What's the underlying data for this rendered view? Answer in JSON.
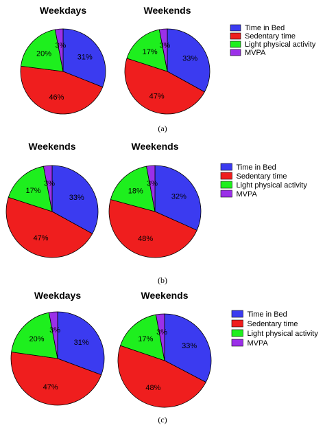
{
  "legend_items": [
    {
      "label": "Time in Bed",
      "color": "#3b3bf0"
    },
    {
      "label": "Sedentary time",
      "color": "#ef1e1e"
    },
    {
      "label": "Light physical activity",
      "color": "#1eef1e"
    },
    {
      "label": "MVPA",
      "color": "#9b30e8"
    }
  ],
  "chart_data": [
    {
      "type": "pie",
      "panel": "(a)",
      "caption": "(a)",
      "charts": [
        {
          "title": "Weekdays",
          "categories": [
            "Time in Bed",
            "Sedentary time",
            "Light physical activity",
            "MVPA"
          ],
          "values": [
            31,
            46,
            20,
            3
          ],
          "labels": [
            "31%",
            "46%",
            "20%",
            "3%"
          ]
        },
        {
          "title": "Weekends",
          "categories": [
            "Time in Bed",
            "Sedentary time",
            "Light physical activity",
            "MVPA"
          ],
          "values": [
            33,
            47,
            17,
            3
          ],
          "labels": [
            "33%",
            "47%",
            "17%",
            "3%"
          ]
        }
      ],
      "legend": [
        "Time in Bed",
        "Sedentary time",
        "Light physical activity",
        "MVPA"
      ]
    },
    {
      "type": "pie",
      "panel": "(b)",
      "caption": "(b)",
      "charts": [
        {
          "title": "Weekends",
          "categories": [
            "Time in Bed",
            "Sedentary time",
            "Light physical activity",
            "MVPA"
          ],
          "values": [
            33,
            47,
            17,
            3
          ],
          "labels": [
            "33%",
            "47%",
            "17%",
            "3%"
          ]
        },
        {
          "title": "Weekends",
          "categories": [
            "Time in Bed",
            "Sedentary time",
            "Light physical activity",
            "MVPA"
          ],
          "values": [
            32,
            48,
            18,
            3
          ],
          "labels": [
            "32%",
            "48%",
            "18%",
            "3%"
          ]
        }
      ],
      "legend": [
        "Time in Bed",
        "Sedentary time",
        "Light physical activity",
        "MVPA"
      ]
    },
    {
      "type": "pie",
      "panel": "(c)",
      "caption": "(c)",
      "charts": [
        {
          "title": "Weekdays",
          "categories": [
            "Time in Bed",
            "Sedentary time",
            "Light physical activity",
            "MVPA"
          ],
          "values": [
            31,
            47,
            20,
            3
          ],
          "labels": [
            "31%",
            "47%",
            "20%",
            "3%"
          ]
        },
        {
          "title": "Weekends",
          "categories": [
            "Time in Bed",
            "Sedentary time",
            "Light physical activity",
            "MVPA"
          ],
          "values": [
            33,
            48,
            17,
            3
          ],
          "labels": [
            "33%",
            "48%",
            "17%",
            "3%"
          ]
        }
      ],
      "legend": [
        "Time in Bed",
        "Sedentary time",
        "Light physical activity",
        "MVPA"
      ]
    }
  ]
}
